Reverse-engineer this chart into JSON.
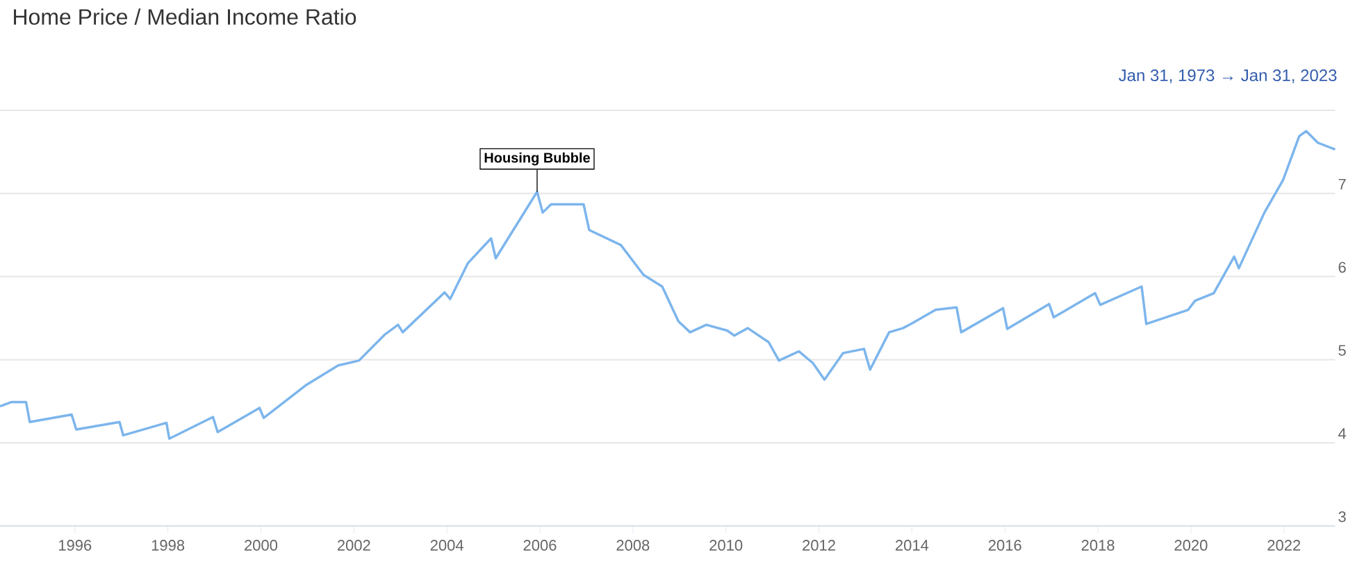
{
  "chart_data": {
    "type": "line",
    "title": "Home Price / Median Income Ratio",
    "annotations": [
      {
        "text": "Housing Bubble",
        "x": 2005.94,
        "y": 7.02
      },
      "Jan 31, 1973 → Jan 31, 2023"
    ],
    "x": [
      1994.39,
      1994.63,
      1994.95,
      1995.03,
      1995.93,
      1996.03,
      1996.96,
      1997.04,
      1997.97,
      1998.03,
      1998.97,
      1999.07,
      1999.97,
      2000.06,
      2000.96,
      2001.66,
      2002.11,
      2002.66,
      2002.95,
      2003.05,
      2003.95,
      2004.07,
      2004.45,
      2004.95,
      2005.05,
      2005.94,
      2006.06,
      2006.24,
      2006.94,
      2007.06,
      2007.74,
      2008.23,
      2008.63,
      2008.98,
      2009.23,
      2009.58,
      2010.03,
      2010.18,
      2010.47,
      2010.92,
      2011.14,
      2011.57,
      2011.87,
      2012.12,
      2012.52,
      2012.97,
      2013.1,
      2013.51,
      2013.81,
      2014.01,
      2014.51,
      2014.96,
      2015.06,
      2015.96,
      2016.05,
      2016.95,
      2017.05,
      2017.94,
      2018.05,
      2018.94,
      2019.04,
      2019.94,
      2020.09,
      2020.49,
      2020.93,
      2021.03,
      2021.58,
      2021.98,
      2022.33,
      2022.48,
      2022.73,
      2023.1
    ],
    "values": [
      4.44,
      4.49,
      4.49,
      4.25,
      4.34,
      4.16,
      4.25,
      4.09,
      4.24,
      4.05,
      4.31,
      4.13,
      4.42,
      4.3,
      4.69,
      4.93,
      4.99,
      5.3,
      5.42,
      5.33,
      5.81,
      5.73,
      6.16,
      6.46,
      6.22,
      7.02,
      6.77,
      6.87,
      6.87,
      6.56,
      6.38,
      6.02,
      5.88,
      5.46,
      5.33,
      5.42,
      5.35,
      5.29,
      5.38,
      5.21,
      4.99,
      5.1,
      4.96,
      4.76,
      5.08,
      5.13,
      4.88,
      5.33,
      5.38,
      5.44,
      5.6,
      5.63,
      5.33,
      5.62,
      5.37,
      5.67,
      5.51,
      5.8,
      5.66,
      5.88,
      5.43,
      5.6,
      5.71,
      5.8,
      6.24,
      6.1,
      6.77,
      7.16,
      7.69,
      7.75,
      7.61,
      7.53
    ],
    "color": "#7cb5ec",
    "xlim": [
      1994.39,
      2023.1
    ],
    "ylim": [
      3,
      8
    ],
    "xticks": [
      1996,
      1998,
      2000,
      2002,
      2004,
      2006,
      2008,
      2010,
      2012,
      2014,
      2016,
      2018,
      2020,
      2022
    ],
    "yticks": [
      3,
      4,
      5,
      6,
      7,
      {
        "value": 8,
        "label": null
      }
    ],
    "grid": "y"
  }
}
